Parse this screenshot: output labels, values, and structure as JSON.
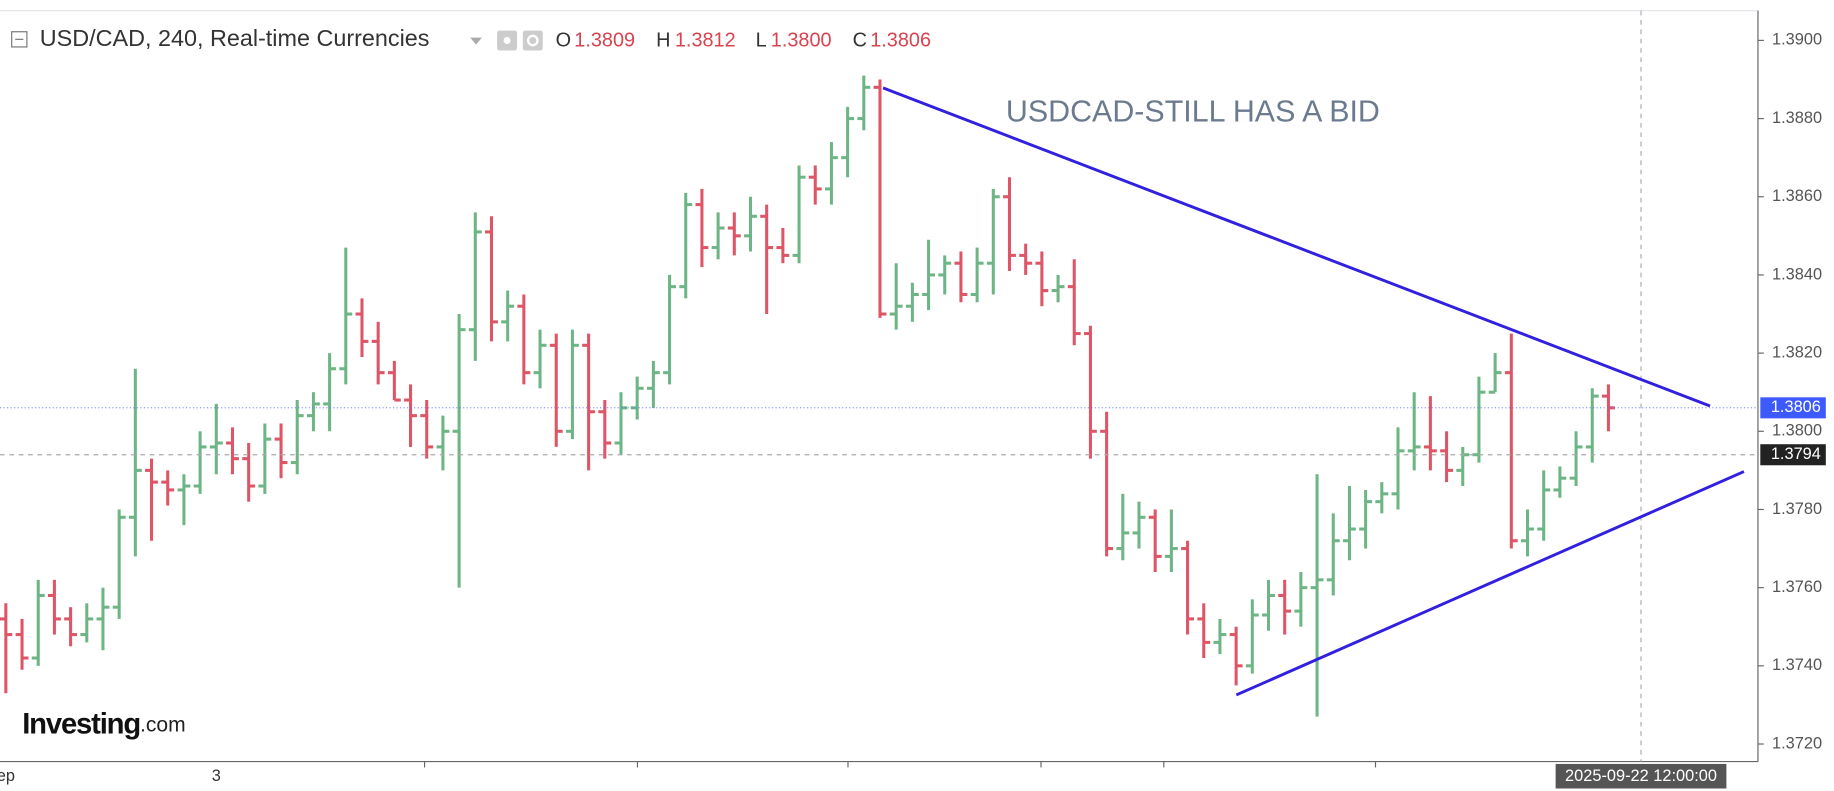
{
  "header": {
    "symbol": "USD/CAD, 240, Real-time Currencies",
    "ohlc": [
      {
        "key": "O",
        "value": "1.3809"
      },
      {
        "key": "H",
        "value": "1.3812"
      },
      {
        "key": "L",
        "value": "1.3800"
      },
      {
        "key": "C",
        "value": "1.3806"
      }
    ]
  },
  "logo": {
    "name": "Investing",
    "suffix": ".com"
  },
  "chart_data": {
    "type": "ohlc",
    "annotation": "USDCAD-STILL HAS A BID",
    "up_color": "#6db585",
    "down_color": "#de5565",
    "categories": [
      "ep",
      null,
      null,
      null,
      null,
      null,
      null,
      null,
      null,
      null,
      null,
      null,
      null,
      "3",
      null,
      null,
      null,
      null,
      null,
      null,
      null,
      null,
      null,
      null,
      null,
      null,
      null,
      null,
      null,
      null,
      null,
      null,
      null,
      null,
      null,
      null,
      null,
      null,
      null,
      null,
      null,
      null,
      null,
      null,
      null,
      null,
      null,
      null,
      null,
      null,
      null,
      null,
      null,
      null,
      null,
      null,
      null,
      null,
      null,
      null,
      null,
      null,
      null,
      null,
      null,
      null,
      null,
      null,
      null,
      null,
      null,
      null,
      null,
      null,
      null,
      null,
      null,
      null,
      null,
      null,
      null,
      null,
      null,
      null,
      null,
      null,
      null,
      null,
      null,
      null,
      null,
      null,
      null,
      null,
      null,
      null,
      null,
      null,
      null,
      null
    ],
    "open": [
      1.3752,
      1.3748,
      1.3742,
      1.3758,
      1.3752,
      1.3748,
      1.3752,
      1.3755,
      1.3778,
      1.379,
      1.3787,
      1.3785,
      1.3786,
      1.3796,
      1.3797,
      1.3793,
      1.3786,
      1.3798,
      1.3792,
      1.3804,
      1.3807,
      1.3816,
      1.383,
      1.3823,
      1.3815,
      1.3808,
      1.3804,
      1.3796,
      1.38,
      1.3826,
      1.3851,
      1.3828,
      1.3832,
      1.3815,
      1.3822,
      1.38,
      1.3822,
      1.3805,
      1.3797,
      1.3806,
      1.3811,
      1.3815,
      1.3837,
      1.3858,
      1.3847,
      1.3852,
      1.385,
      1.3855,
      1.3847,
      1.3845,
      1.3865,
      1.3862,
      1.387,
      1.388,
      1.3888,
      1.383,
      1.3832,
      1.3835,
      1.384,
      1.3843,
      1.3835,
      1.3843,
      1.386,
      1.3845,
      1.3843,
      1.3836,
      1.3837,
      1.3825,
      1.38,
      1.377,
      1.3774,
      1.3778,
      1.3768,
      1.377,
      1.3752,
      1.3746,
      1.3748,
      1.374,
      1.3753,
      1.3758,
      1.3754,
      1.376,
      1.3762,
      1.3772,
      1.3775,
      1.3782,
      1.3784,
      1.3795,
      1.3796,
      1.3795,
      1.379,
      1.3794,
      1.381,
      1.3815,
      1.3772,
      1.3775,
      1.3785,
      1.3788,
      1.3796,
      1.3809
    ],
    "high": [
      1.3756,
      1.3752,
      1.3762,
      1.3762,
      1.3755,
      1.3756,
      1.376,
      1.378,
      1.3816,
      1.3793,
      1.379,
      1.3789,
      1.38,
      1.3807,
      1.3801,
      1.3797,
      1.3802,
      1.3802,
      1.3808,
      1.381,
      1.382,
      1.3847,
      1.3834,
      1.3828,
      1.3818,
      1.3812,
      1.3808,
      1.3804,
      1.383,
      1.3856,
      1.3855,
      1.3836,
      1.3835,
      1.3826,
      1.3825,
      1.3826,
      1.3825,
      1.3808,
      1.381,
      1.3814,
      1.3818,
      1.384,
      1.3861,
      1.3862,
      1.3856,
      1.3856,
      1.386,
      1.3858,
      1.3852,
      1.3868,
      1.3868,
      1.3874,
      1.3883,
      1.3891,
      1.389,
      1.3843,
      1.3838,
      1.3849,
      1.3845,
      1.3846,
      1.3847,
      1.3862,
      1.3865,
      1.3848,
      1.3846,
      1.384,
      1.3844,
      1.3827,
      1.3805,
      1.3784,
      1.3782,
      1.378,
      1.378,
      1.3772,
      1.3756,
      1.3752,
      1.375,
      1.3757,
      1.3762,
      1.3762,
      1.3764,
      1.3789,
      1.3779,
      1.3786,
      1.3785,
      1.3787,
      1.3801,
      1.381,
      1.3809,
      1.38,
      1.3796,
      1.3814,
      1.382,
      1.3825,
      1.378,
      1.379,
      1.3791,
      1.38,
      1.3811,
      1.3812
    ],
    "low": [
      1.3733,
      1.3739,
      1.374,
      1.3748,
      1.3745,
      1.3746,
      1.3744,
      1.3752,
      1.3768,
      1.3772,
      1.3781,
      1.3776,
      1.3784,
      1.3789,
      1.3789,
      1.3782,
      1.3784,
      1.3788,
      1.3789,
      1.38,
      1.38,
      1.3812,
      1.3819,
      1.3812,
      1.3808,
      1.3796,
      1.3793,
      1.379,
      1.376,
      1.3818,
      1.3823,
      1.3823,
      1.3812,
      1.3811,
      1.3796,
      1.3798,
      1.379,
      1.3793,
      1.3794,
      1.3803,
      1.3806,
      1.3812,
      1.3834,
      1.3842,
      1.3844,
      1.3845,
      1.3846,
      1.383,
      1.3843,
      1.3843,
      1.3858,
      1.3858,
      1.3865,
      1.3877,
      1.3829,
      1.3826,
      1.3828,
      1.3831,
      1.3835,
      1.3833,
      1.3833,
      1.3835,
      1.3841,
      1.384,
      1.3832,
      1.3833,
      1.3822,
      1.3793,
      1.3768,
      1.3767,
      1.377,
      1.3764,
      1.3764,
      1.3748,
      1.3742,
      1.3743,
      1.3735,
      1.3738,
      1.3749,
      1.3748,
      1.375,
      1.3727,
      1.3758,
      1.3767,
      1.377,
      1.3779,
      1.378,
      1.379,
      1.379,
      1.3787,
      1.3786,
      1.3792,
      1.381,
      1.377,
      1.3768,
      1.3772,
      1.3783,
      1.3786,
      1.3792,
      1.38
    ],
    "close": [
      1.3748,
      1.3742,
      1.3758,
      1.3752,
      1.3748,
      1.3752,
      1.3755,
      1.3778,
      1.379,
      1.3787,
      1.3785,
      1.3786,
      1.3796,
      1.3797,
      1.3793,
      1.3786,
      1.3798,
      1.3792,
      1.3804,
      1.3807,
      1.3816,
      1.383,
      1.3823,
      1.3815,
      1.3808,
      1.3804,
      1.3796,
      1.38,
      1.3826,
      1.3851,
      1.3828,
      1.3832,
      1.3815,
      1.3822,
      1.38,
      1.3822,
      1.3805,
      1.3797,
      1.3806,
      1.3811,
      1.3815,
      1.3837,
      1.3858,
      1.3847,
      1.3852,
      1.385,
      1.3855,
      1.3847,
      1.3845,
      1.3865,
      1.3862,
      1.387,
      1.388,
      1.3888,
      1.383,
      1.3832,
      1.3835,
      1.384,
      1.3843,
      1.3835,
      1.3843,
      1.386,
      1.3845,
      1.3843,
      1.3836,
      1.3837,
      1.3825,
      1.38,
      1.377,
      1.3774,
      1.3778,
      1.3768,
      1.377,
      1.3752,
      1.3746,
      1.3748,
      1.374,
      1.3753,
      1.3758,
      1.3754,
      1.376,
      1.3762,
      1.3772,
      1.3775,
      1.3782,
      1.3784,
      1.3795,
      1.3796,
      1.3795,
      1.379,
      1.3794,
      1.381,
      1.3815,
      1.3772,
      1.3775,
      1.3785,
      1.3788,
      1.3796,
      1.3809,
      1.3806
    ],
    "ylim": [
      1.37155,
      1.39076
    ],
    "yticks": [
      {
        "value": 1.372,
        "label": "1.3720"
      },
      {
        "value": 1.374,
        "label": "1.3740"
      },
      {
        "value": 1.376,
        "label": "1.3760"
      },
      {
        "value": 1.378,
        "label": "1.3780"
      },
      {
        "value": 1.38,
        "label": "1.3800"
      },
      {
        "value": 1.382,
        "label": "1.3820"
      },
      {
        "value": 1.384,
        "label": "1.3840"
      },
      {
        "value": 1.386,
        "label": "1.3860"
      },
      {
        "value": 1.388,
        "label": "1.3880"
      },
      {
        "value": 1.39,
        "label": "1.3900"
      }
    ],
    "last_price": {
      "value": 1.3806,
      "label": "1.3806"
    },
    "crosshair": {
      "value": 1.3794,
      "label": "1.3794",
      "date": "2025-09-22 12:00:00"
    }
  }
}
